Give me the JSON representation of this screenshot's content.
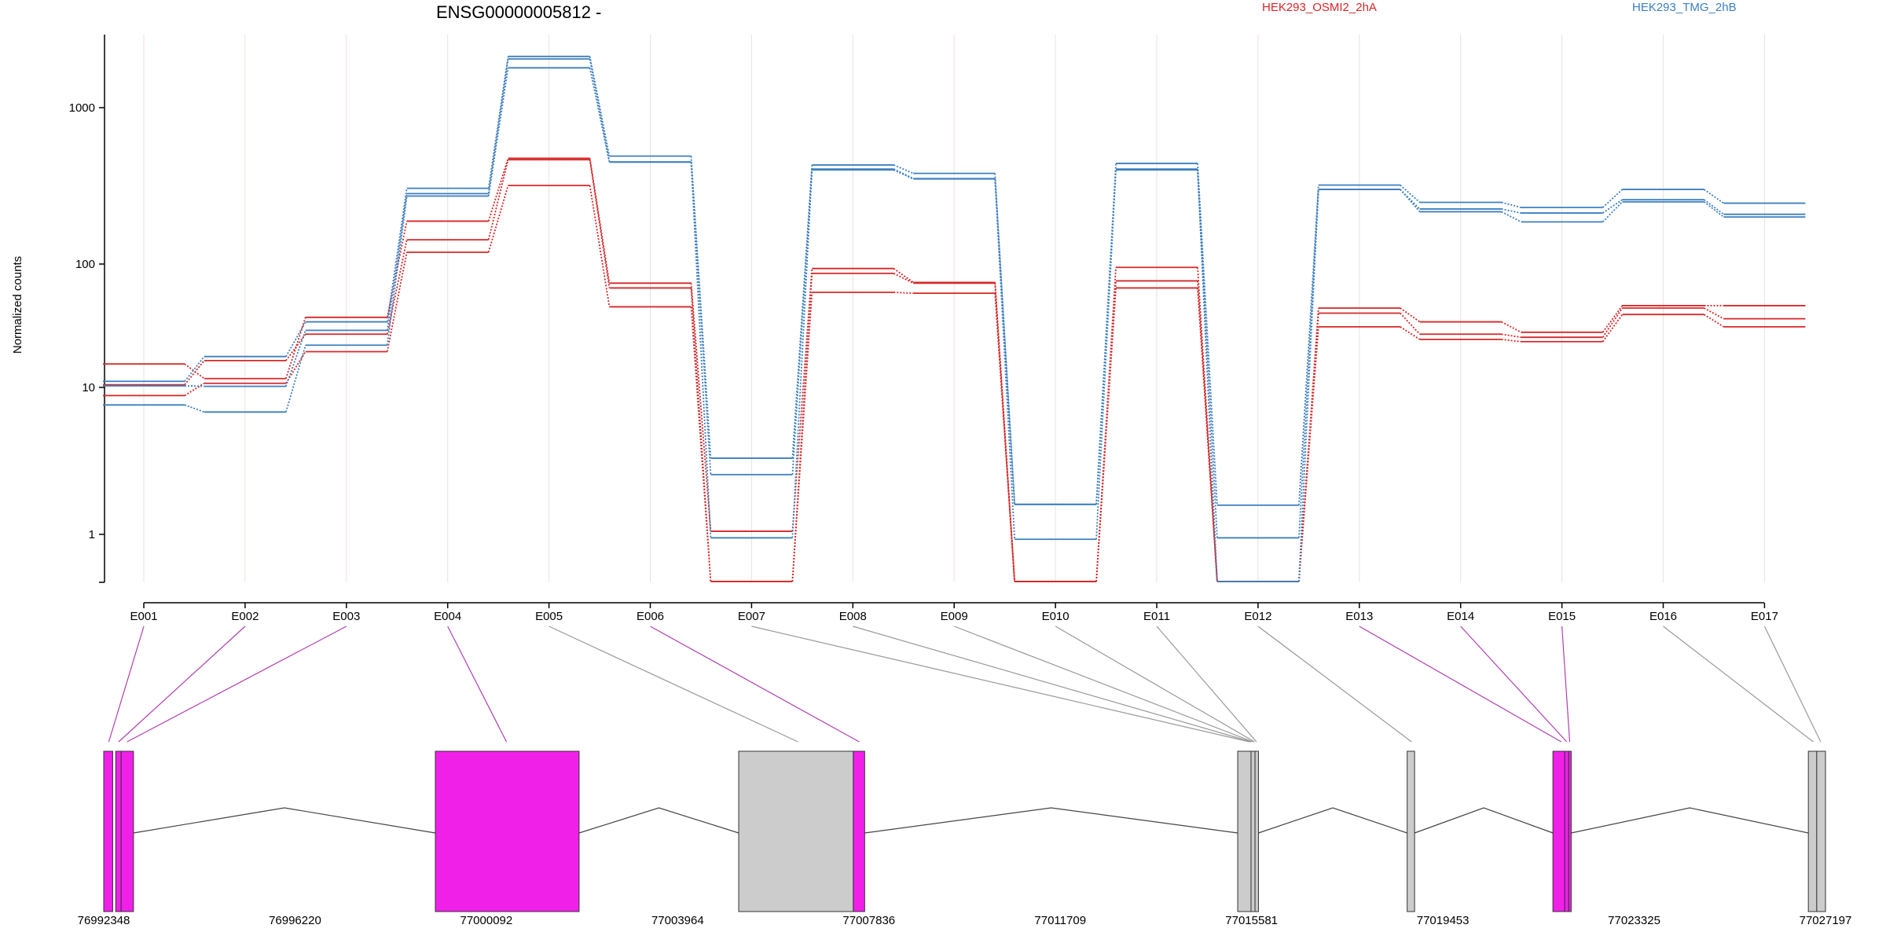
{
  "chart_data": {
    "type": "line",
    "title": "ENSG00000005812 -",
    "ylabel": "Normalized counts",
    "yscale": "log",
    "ylim": [
      0.48,
      3000
    ],
    "y_ticks": [
      {
        "value": 1,
        "label": "1"
      },
      {
        "value": 10,
        "label": "10"
      },
      {
        "value": 100,
        "label": "100"
      },
      {
        "value": 1000,
        "label": "1000"
      }
    ],
    "categories": [
      "E001",
      "E002",
      "E003",
      "E004",
      "E005",
      "E006",
      "E007",
      "E008",
      "E009",
      "E010",
      "E011",
      "E012",
      "E013",
      "E014",
      "E015",
      "E016",
      "E017"
    ],
    "grid": true,
    "legend": [
      {
        "name": "HEK293_OSMI2_2hA",
        "color": "#d62728"
      },
      {
        "name": "HEK293_TMG_2hB",
        "color": "#3d7fbf"
      }
    ],
    "series": [
      {
        "group": "HEK293_OSMI2_2hA",
        "color": "#d62728",
        "values": [
          15.5,
          11.8,
          37,
          188,
          475,
          70,
          1.05,
          92,
          71,
          0.5,
          94,
          0.5,
          44,
          34,
          28,
          46,
          46
        ]
      },
      {
        "group": "HEK293_OSMI2_2hA",
        "color": "#d62728",
        "values": [
          10.5,
          16.5,
          27,
          143,
          465,
          64,
          0.5,
          84,
          70,
          0.5,
          73,
          0.5,
          40,
          27,
          25.5,
          44,
          36
        ]
      },
      {
        "group": "HEK293_OSMI2_2hA",
        "color": "#d62728",
        "values": [
          8.8,
          10.8,
          19.5,
          119,
          318,
          45,
          0.5,
          59,
          58,
          0.5,
          64,
          0.5,
          31,
          24.5,
          23.5,
          39,
          31
        ]
      },
      {
        "group": "HEK293_TMG_2hB",
        "color": "#3d7fbf",
        "values": [
          11.2,
          17.8,
          34,
          305,
          2160,
          490,
          3.3,
          430,
          380,
          1.6,
          440,
          1.58,
          320,
          248,
          230,
          300,
          245
        ]
      },
      {
        "group": "HEK293_TMG_2hB",
        "color": "#3d7fbf",
        "values": [
          10.3,
          10.2,
          29,
          282,
          2080,
          450,
          2.55,
          405,
          352,
          1.6,
          405,
          0.95,
          300,
          225,
          212,
          258,
          208
        ]
      },
      {
        "group": "HEK293_TMG_2hB",
        "color": "#3d7fbf",
        "values": [
          7.6,
          6.8,
          22,
          272,
          1820,
          448,
          0.95,
          400,
          350,
          0.93,
          400,
          0.5,
          300,
          216,
          186,
          250,
          200
        ]
      }
    ],
    "gene_model": {
      "coordinate_labels": [
        "76992348",
        "76996220",
        "77000092",
        "77003964",
        "77007836",
        "77011709",
        "77015581",
        "77019453",
        "77023325",
        "77027197"
      ],
      "range": [
        76992348,
        77027197
      ],
      "exons": [
        {
          "start": 76992348,
          "end": 76992530,
          "color": "#f020e8"
        },
        {
          "start": 76992590,
          "end": 76992700,
          "color": "#f020e8"
        },
        {
          "start": 76992700,
          "end": 76992950,
          "color": "#f020e8"
        },
        {
          "start": 76999060,
          "end": 77001970,
          "color": "#f020e8"
        },
        {
          "start": 77005200,
          "end": 77007520,
          "color": "#cccccc"
        },
        {
          "start": 77007520,
          "end": 77007750,
          "color": "#f020e8"
        },
        {
          "start": 77015300,
          "end": 77015570,
          "color": "#cccccc"
        },
        {
          "start": 77015570,
          "end": 77015650,
          "color": "#cccccc"
        },
        {
          "start": 77015650,
          "end": 77015720,
          "color": "#cccccc"
        },
        {
          "start": 77018730,
          "end": 77018880,
          "color": "#cccccc"
        },
        {
          "start": 77021680,
          "end": 77021920,
          "color": "#f020e8"
        },
        {
          "start": 77021920,
          "end": 77022000,
          "color": "#f020e8"
        },
        {
          "start": 77022000,
          "end": 77022050,
          "color": "#f020e8"
        },
        {
          "start": 77026850,
          "end": 77027020,
          "color": "#cccccc"
        },
        {
          "start": 77027020,
          "end": 77027197,
          "color": "#cccccc"
        }
      ],
      "introns": [
        {
          "start": 76992950,
          "end": 76999060
        },
        {
          "start": 77001970,
          "end": 77005200
        },
        {
          "start": 77007750,
          "end": 77015300
        },
        {
          "start": 77015720,
          "end": 77018730
        },
        {
          "start": 77018880,
          "end": 77021680
        },
        {
          "start": 77022050,
          "end": 77026850
        }
      ],
      "links": [
        {
          "exon": "E001",
          "pos": 76992450,
          "color": "#b03fb0"
        },
        {
          "exon": "E002",
          "pos": 76992650,
          "color": "#b03fb0"
        },
        {
          "exon": "E003",
          "pos": 76992820,
          "color": "#b03fb0"
        },
        {
          "exon": "E004",
          "pos": 77000500,
          "color": "#b03fb0"
        },
        {
          "exon": "E005",
          "pos": 77006400,
          "color": "#999999"
        },
        {
          "exon": "E006",
          "pos": 77007640,
          "color": "#b03fb0"
        },
        {
          "exon": "E007",
          "pos": 77015540,
          "color": "#999999"
        },
        {
          "exon": "E008",
          "pos": 77015580,
          "color": "#999999"
        },
        {
          "exon": "E009",
          "pos": 77015610,
          "color": "#999999"
        },
        {
          "exon": "E010",
          "pos": 77015640,
          "color": "#999999"
        },
        {
          "exon": "E011",
          "pos": 77015680,
          "color": "#999999"
        },
        {
          "exon": "E012",
          "pos": 77018820,
          "color": "#999999"
        },
        {
          "exon": "E013",
          "pos": 77021850,
          "color": "#b03fb0"
        },
        {
          "exon": "E014",
          "pos": 77021960,
          "color": "#b03fb0"
        },
        {
          "exon": "E015",
          "pos": 77022020,
          "color": "#b03fb0"
        },
        {
          "exon": "E016",
          "pos": 77026950,
          "color": "#999999"
        },
        {
          "exon": "E017",
          "pos": 77027100,
          "color": "#999999"
        }
      ]
    }
  }
}
